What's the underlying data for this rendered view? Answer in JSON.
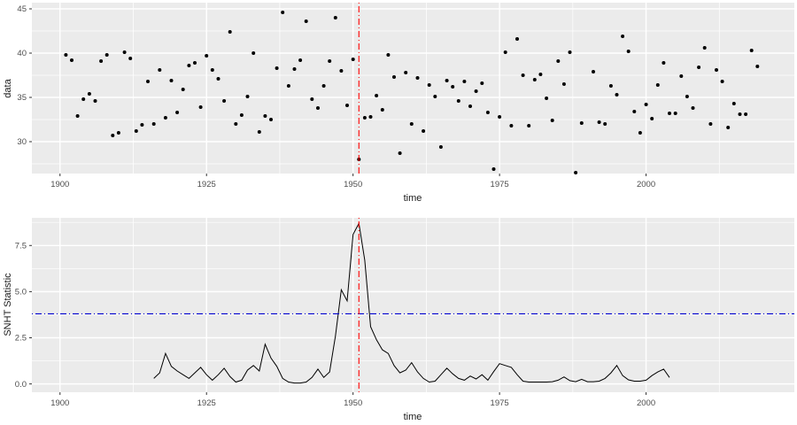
{
  "theme": {
    "background": "#FFFFFF",
    "panel_bg": "#EBEBEB",
    "grid_major": "#FFFFFF",
    "grid_minor": "#FFFFFF",
    "axis_text_color": "#4D4D4D",
    "axis_title_color": "#1A1A1A",
    "tick_mark_color": "#333333",
    "point_color": "#000000",
    "line_color": "#000000",
    "changepoint_line_color": "#FF0000",
    "threshold_line_color": "#0000CD"
  },
  "chart_data": [
    {
      "type": "scatter",
      "title": "",
      "xlabel": "time",
      "ylabel": "data",
      "xlim": [
        1895.2,
        2025.3
      ],
      "ylim": [
        26.4,
        45.7
      ],
      "xticks": [
        1900,
        1925,
        1950,
        1975,
        2000
      ],
      "xtick_labels": [
        "1900",
        "1925",
        "1950",
        "1975",
        "2000"
      ],
      "yticks": [
        30,
        35,
        40,
        45
      ],
      "ytick_labels": [
        "30",
        "35",
        "40",
        "45"
      ],
      "grid": true,
      "legend": "none",
      "vline": {
        "x": 1951,
        "color": "#FF0000",
        "style": "dotdash"
      },
      "points": [
        [
          1901,
          39.8
        ],
        [
          1902,
          39.2
        ],
        [
          1903,
          32.9
        ],
        [
          1904,
          34.8
        ],
        [
          1905,
          35.4
        ],
        [
          1906,
          34.6
        ],
        [
          1907,
          39.1
        ],
        [
          1908,
          39.8
        ],
        [
          1909,
          30.7
        ],
        [
          1910,
          31.0
        ],
        [
          1911,
          40.1
        ],
        [
          1912,
          39.4
        ],
        [
          1913,
          31.2
        ],
        [
          1914,
          31.9
        ],
        [
          1915,
          36.8
        ],
        [
          1916,
          32.0
        ],
        [
          1917,
          38.1
        ],
        [
          1918,
          32.7
        ],
        [
          1919,
          36.9
        ],
        [
          1920,
          33.3
        ],
        [
          1921,
          35.9
        ],
        [
          1922,
          38.6
        ],
        [
          1923,
          38.9
        ],
        [
          1924,
          33.9
        ],
        [
          1925,
          39.7
        ],
        [
          1926,
          38.1
        ],
        [
          1927,
          37.1
        ],
        [
          1928,
          34.6
        ],
        [
          1929,
          42.4
        ],
        [
          1930,
          32.0
        ],
        [
          1931,
          33.0
        ],
        [
          1932,
          35.1
        ],
        [
          1933,
          40.0
        ],
        [
          1934,
          31.1
        ],
        [
          1935,
          32.9
        ],
        [
          1936,
          32.5
        ],
        [
          1937,
          38.3
        ],
        [
          1938,
          44.6
        ],
        [
          1939,
          36.3
        ],
        [
          1940,
          38.2
        ],
        [
          1941,
          39.2
        ],
        [
          1942,
          43.6
        ],
        [
          1943,
          34.8
        ],
        [
          1944,
          33.8
        ],
        [
          1945,
          36.3
        ],
        [
          1946,
          39.1
        ],
        [
          1947,
          44.0
        ],
        [
          1948,
          38.0
        ],
        [
          1949,
          34.1
        ],
        [
          1950,
          39.3
        ],
        [
          1951,
          28.0
        ],
        [
          1952,
          32.7
        ],
        [
          1953,
          32.8
        ],
        [
          1954,
          35.2
        ],
        [
          1955,
          33.6
        ],
        [
          1956,
          39.8
        ],
        [
          1957,
          37.3
        ],
        [
          1958,
          28.7
        ],
        [
          1959,
          37.8
        ],
        [
          1960,
          32.0
        ],
        [
          1961,
          37.2
        ],
        [
          1962,
          31.2
        ],
        [
          1963,
          36.4
        ],
        [
          1964,
          35.1
        ],
        [
          1965,
          29.4
        ],
        [
          1966,
          36.9
        ],
        [
          1967,
          36.2
        ],
        [
          1968,
          34.6
        ],
        [
          1969,
          36.8
        ],
        [
          1970,
          34.0
        ],
        [
          1971,
          35.7
        ],
        [
          1972,
          36.6
        ],
        [
          1973,
          33.3
        ],
        [
          1974,
          26.9
        ],
        [
          1975,
          32.8
        ],
        [
          1976,
          40.1
        ],
        [
          1977,
          31.8
        ],
        [
          1978,
          41.6
        ],
        [
          1979,
          37.5
        ],
        [
          1980,
          31.8
        ],
        [
          1981,
          37.0
        ],
        [
          1982,
          37.6
        ],
        [
          1983,
          34.9
        ],
        [
          1984,
          32.4
        ],
        [
          1985,
          39.1
        ],
        [
          1986,
          36.5
        ],
        [
          1987,
          40.1
        ],
        [
          1988,
          26.5
        ],
        [
          1989,
          32.1
        ],
        [
          1991,
          37.9
        ],
        [
          1992,
          32.2
        ],
        [
          1993,
          32.0
        ],
        [
          1994,
          36.3
        ],
        [
          1995,
          35.3
        ],
        [
          1996,
          41.9
        ],
        [
          1997,
          40.2
        ],
        [
          1998,
          33.4
        ],
        [
          1999,
          31.0
        ],
        [
          2000,
          34.2
        ],
        [
          2001,
          32.6
        ],
        [
          2002,
          36.4
        ],
        [
          2003,
          38.9
        ],
        [
          2004,
          33.2
        ],
        [
          2005,
          33.2
        ],
        [
          2006,
          37.4
        ],
        [
          2007,
          35.1
        ],
        [
          2008,
          33.8
        ],
        [
          2009,
          38.4
        ],
        [
          2010,
          40.6
        ],
        [
          2011,
          32.0
        ],
        [
          2012,
          38.1
        ],
        [
          2013,
          36.8
        ],
        [
          2014,
          31.6
        ],
        [
          2015,
          34.3
        ],
        [
          2016,
          33.1
        ],
        [
          2017,
          33.1
        ],
        [
          2018,
          40.3
        ],
        [
          2019,
          38.5
        ]
      ]
    },
    {
      "type": "line",
      "title": "",
      "xlabel": "time",
      "ylabel": "SNHT Statistic",
      "xlim": [
        1895.2,
        2025.3
      ],
      "ylim": [
        -0.45,
        9.0
      ],
      "xticks": [
        1900,
        1925,
        1950,
        1975,
        2000
      ],
      "xtick_labels": [
        "1900",
        "1925",
        "1950",
        "1975",
        "2000"
      ],
      "yticks": [
        0,
        2.5,
        5,
        7.5
      ],
      "ytick_labels": [
        "0.0",
        "2.5",
        "5.0",
        "7.5"
      ],
      "grid": true,
      "legend": "none",
      "vline": {
        "x": 1951,
        "color": "#FF0000",
        "style": "dotdash"
      },
      "hline": {
        "y": 3.8,
        "color": "#0000CD",
        "style": "dotdash"
      },
      "points": [
        [
          1916,
          0.3
        ],
        [
          1917,
          0.6
        ],
        [
          1918,
          1.65
        ],
        [
          1919,
          0.95
        ],
        [
          1920,
          0.7
        ],
        [
          1921,
          0.5
        ],
        [
          1922,
          0.3
        ],
        [
          1923,
          0.6
        ],
        [
          1924,
          0.9
        ],
        [
          1925,
          0.5
        ],
        [
          1926,
          0.2
        ],
        [
          1927,
          0.5
        ],
        [
          1928,
          0.85
        ],
        [
          1929,
          0.4
        ],
        [
          1930,
          0.1
        ],
        [
          1931,
          0.2
        ],
        [
          1932,
          0.75
        ],
        [
          1933,
          1.0
        ],
        [
          1934,
          0.7
        ],
        [
          1935,
          2.15
        ],
        [
          1936,
          1.4
        ],
        [
          1937,
          0.95
        ],
        [
          1938,
          0.3
        ],
        [
          1939,
          0.1
        ],
        [
          1940,
          0.05
        ],
        [
          1941,
          0.05
        ],
        [
          1942,
          0.1
        ],
        [
          1943,
          0.35
        ],
        [
          1944,
          0.8
        ],
        [
          1945,
          0.35
        ],
        [
          1946,
          0.65
        ],
        [
          1947,
          2.6
        ],
        [
          1948,
          5.1
        ],
        [
          1949,
          4.5
        ],
        [
          1950,
          8.1
        ],
        [
          1951,
          8.7
        ],
        [
          1952,
          6.7
        ],
        [
          1953,
          3.1
        ],
        [
          1954,
          2.4
        ],
        [
          1955,
          1.85
        ],
        [
          1956,
          1.65
        ],
        [
          1957,
          1.0
        ],
        [
          1958,
          0.6
        ],
        [
          1959,
          0.75
        ],
        [
          1960,
          1.15
        ],
        [
          1961,
          0.65
        ],
        [
          1962,
          0.3
        ],
        [
          1963,
          0.1
        ],
        [
          1964,
          0.15
        ],
        [
          1965,
          0.5
        ],
        [
          1966,
          0.85
        ],
        [
          1967,
          0.55
        ],
        [
          1968,
          0.3
        ],
        [
          1969,
          0.2
        ],
        [
          1970,
          0.43
        ],
        [
          1971,
          0.27
        ],
        [
          1972,
          0.5
        ],
        [
          1973,
          0.2
        ],
        [
          1974,
          0.67
        ],
        [
          1975,
          1.1
        ],
        [
          1976,
          1.0
        ],
        [
          1977,
          0.9
        ],
        [
          1978,
          0.5
        ],
        [
          1979,
          0.15
        ],
        [
          1980,
          0.1
        ],
        [
          1981,
          0.1
        ],
        [
          1982,
          0.1
        ],
        [
          1983,
          0.1
        ],
        [
          1984,
          0.12
        ],
        [
          1985,
          0.2
        ],
        [
          1986,
          0.38
        ],
        [
          1987,
          0.18
        ],
        [
          1988,
          0.12
        ],
        [
          1989,
          0.25
        ],
        [
          1990,
          0.12
        ],
        [
          1991,
          0.12
        ],
        [
          1992,
          0.15
        ],
        [
          1993,
          0.3
        ],
        [
          1994,
          0.6
        ],
        [
          1995,
          1.0
        ],
        [
          1996,
          0.45
        ],
        [
          1997,
          0.22
        ],
        [
          1998,
          0.15
        ],
        [
          1999,
          0.15
        ],
        [
          2000,
          0.2
        ],
        [
          2001,
          0.45
        ],
        [
          2002,
          0.65
        ],
        [
          2003,
          0.8
        ],
        [
          2004,
          0.35
        ]
      ]
    }
  ]
}
